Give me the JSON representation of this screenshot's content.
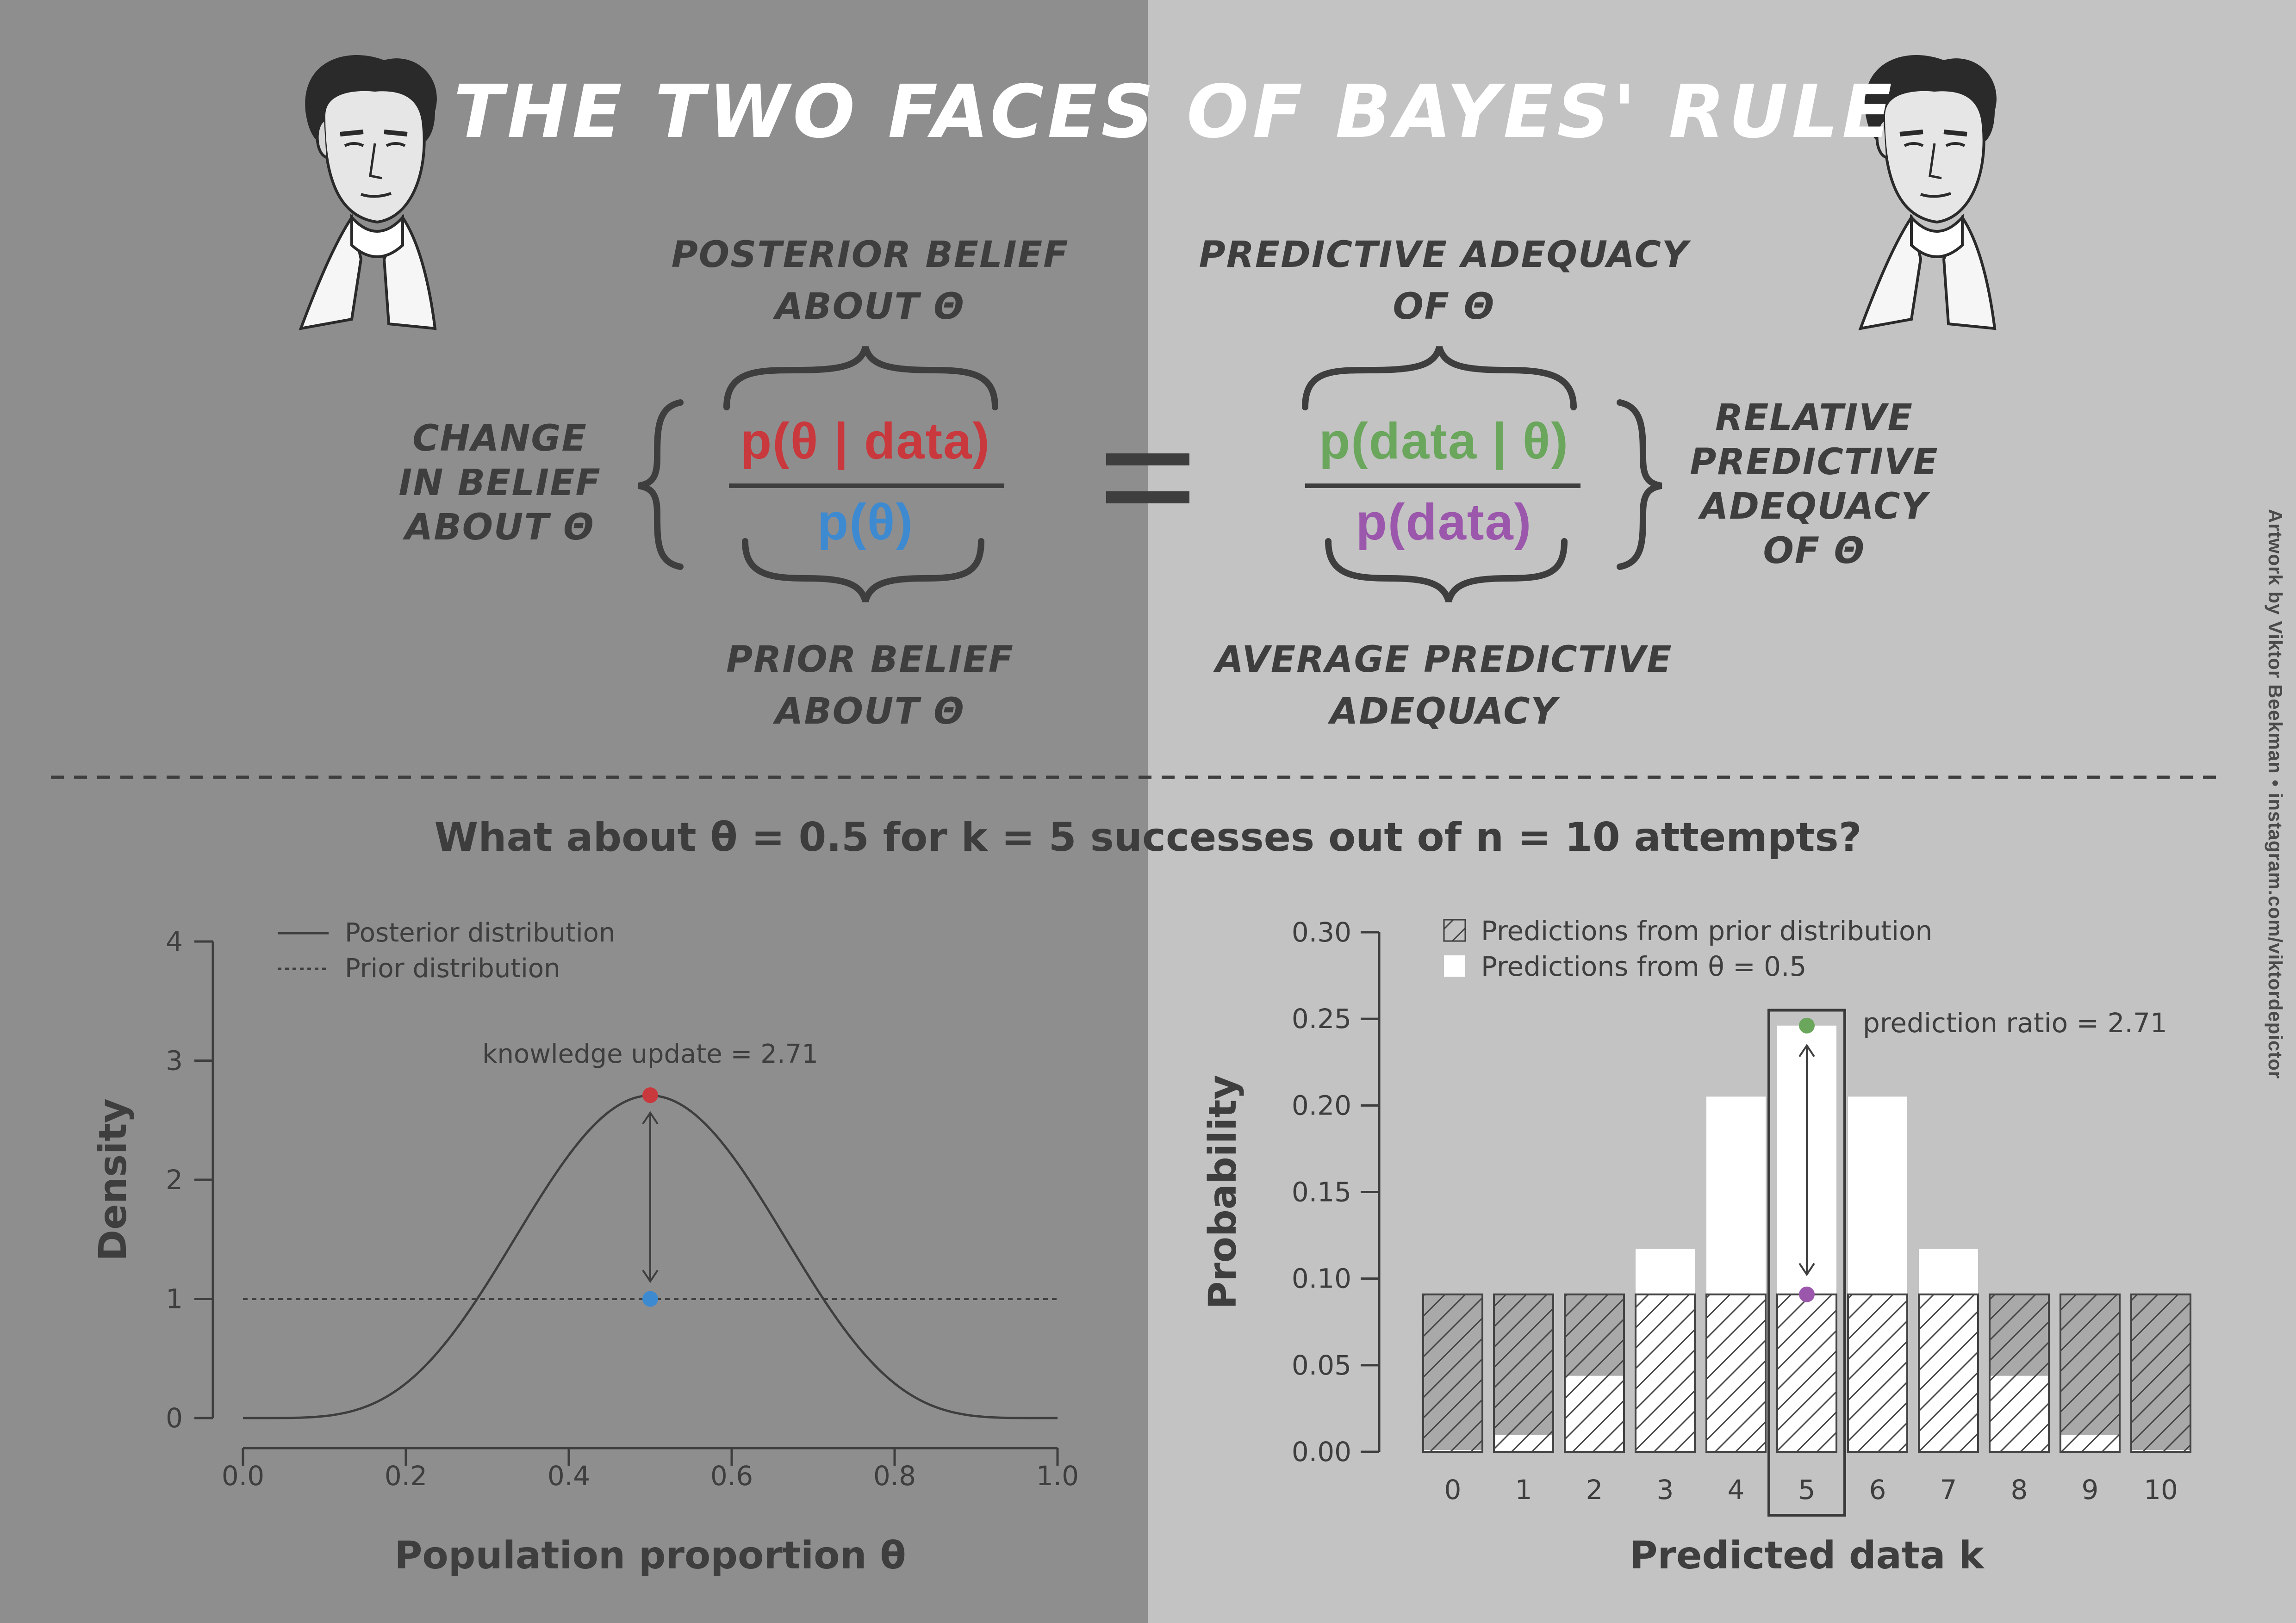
{
  "title": "The two faces of Bayes' rule",
  "labels": {
    "posterior": [
      "Posterior belief",
      "about θ"
    ],
    "prior": [
      "Prior belief",
      "about θ"
    ],
    "change": [
      "Change",
      "in belief",
      "about θ"
    ],
    "predictive_adequacy": [
      "Predictive adequacy",
      "of θ"
    ],
    "average_predictive": [
      "Average predictive",
      "adequacy"
    ],
    "relative": [
      "Relative",
      "predictive",
      "adequacy",
      "of θ"
    ]
  },
  "formula": {
    "left_numerator": "p(θ | data)",
    "left_denominator": "p(θ)",
    "equals": "=",
    "right_numerator": "p(data | θ)",
    "right_denominator": "p(data)"
  },
  "question": "What about θ = 0.5 for k = 5 successes out of n = 10 attempts?",
  "credit": "Artwork by Viktor Beekman • instagram.com/viktordepictor",
  "colors": {
    "left_bg": "#8f8e8f",
    "right_bg": "#c3c3c3",
    "red": "#c9383c",
    "blue": "#3d8ad1",
    "green": "#6aa65c",
    "purple": "#9b57ab",
    "ink": "#3e3e3e"
  },
  "chart_data": [
    {
      "type": "line",
      "xlabel": "Population proportion θ",
      "ylabel": "Density",
      "xlim": [
        0,
        1
      ],
      "ylim": [
        0,
        4
      ],
      "xticks": [
        "0.0",
        "0.2",
        "0.4",
        "0.6",
        "0.8",
        "1.0"
      ],
      "yticks": [
        "0",
        "1",
        "2",
        "3",
        "4"
      ],
      "legend": [
        "Posterior distribution",
        "Prior distribution"
      ],
      "annotation": "knowledge update = 2.71",
      "series": [
        {
          "name": "Posterior distribution",
          "style": "solid",
          "distribution": "Beta(6,6)",
          "peak": {
            "x": 0.5,
            "y": 2.71
          }
        },
        {
          "name": "Prior distribution",
          "style": "dotted",
          "value": 1
        }
      ],
      "highlight": {
        "x": 0.5,
        "posterior": 2.71,
        "prior": 1
      }
    },
    {
      "type": "bar",
      "xlabel": "Predicted data k",
      "ylabel": "Probability",
      "ylim": [
        0,
        0.3
      ],
      "yticks": [
        "0.00",
        "0.05",
        "0.10",
        "0.15",
        "0.20",
        "0.25",
        "0.30"
      ],
      "categories": [
        "0",
        "1",
        "2",
        "3",
        "4",
        "5",
        "6",
        "7",
        "8",
        "9",
        "10"
      ],
      "legend": [
        "Predictions from prior distribution",
        "Predictions from θ = 0.5"
      ],
      "annotation": "prediction ratio = 2.71",
      "series": [
        {
          "name": "Predictions from prior distribution",
          "values": [
            0.0909,
            0.0909,
            0.0909,
            0.0909,
            0.0909,
            0.0909,
            0.0909,
            0.0909,
            0.0909,
            0.0909,
            0.0909
          ]
        },
        {
          "name": "Predictions from θ = 0.5",
          "values": [
            0.001,
            0.0098,
            0.0439,
            0.1172,
            0.2051,
            0.2461,
            0.2051,
            0.1172,
            0.0439,
            0.0098,
            0.001
          ]
        }
      ],
      "highlight": {
        "k": 5,
        "theta_prediction": 0.2461,
        "prior_prediction": 0.0909
      }
    }
  ]
}
